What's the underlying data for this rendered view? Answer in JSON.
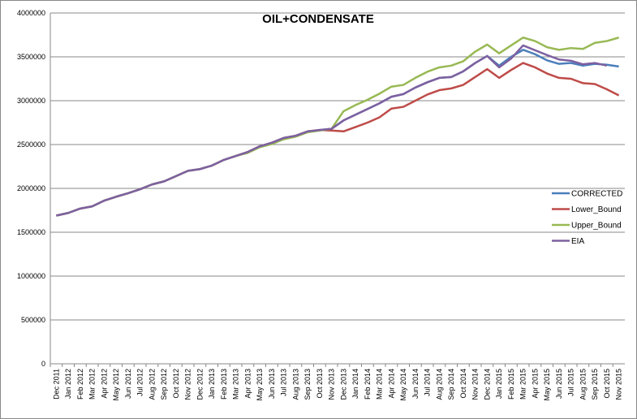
{
  "chart_data": {
    "type": "line",
    "title": "OIL+CONDENSATE",
    "categories": [
      "Dec 2011",
      "Jan 2012",
      "Feb 2012",
      "Mar 2012",
      "Apr 2012",
      "May 2012",
      "Jun 2012",
      "Jul 2012",
      "Aug 2012",
      "Sep 2012",
      "Oct 2012",
      "Nov 2012",
      "Dec 2012",
      "Jan 2013",
      "Feb 2013",
      "Mar 2013",
      "Apr 2013",
      "May 2013",
      "Jun 2013",
      "Jul 2013",
      "Aug 2013",
      "Sep 2013",
      "Oct 2013",
      "Nov 2013",
      "Dec 2013",
      "Jan 2014",
      "Feb 2014",
      "Mar 2014",
      "Apr 2014",
      "May 2014",
      "Jun 2014",
      "Jul 2014",
      "Aug 2014",
      "Sep 2014",
      "Oct 2014",
      "Nov 2014",
      "Dec 2014",
      "Jan 2015",
      "Feb 2015",
      "Mar 2015",
      "Apr 2015",
      "May 2015",
      "Jun 2015",
      "Jul 2015",
      "Aug 2015",
      "Sep 2015",
      "Oct 2015",
      "Nov 2015"
    ],
    "series": [
      {
        "name": "CORRECTED",
        "color": "#4a7ebb",
        "values": [
          1690000,
          1720000,
          1770000,
          1795000,
          1860000,
          1905000,
          1945000,
          1990000,
          2045000,
          2080000,
          2140000,
          2200000,
          2220000,
          2260000,
          2325000,
          2370000,
          2415000,
          2480000,
          2520000,
          2575000,
          2600000,
          2650000,
          2665000,
          2680000,
          2775000,
          2840000,
          2905000,
          2970000,
          3045000,
          3075000,
          3150000,
          3210000,
          3260000,
          3270000,
          3335000,
          3430000,
          3510000,
          3400000,
          3500000,
          3580000,
          3530000,
          3460000,
          3420000,
          3430000,
          3400000,
          3420000,
          3410000,
          3390000
        ]
      },
      {
        "name": "Lower_Bound",
        "color": "#be4b48",
        "values": [
          1690000,
          1720000,
          1770000,
          1795000,
          1860000,
          1905000,
          1945000,
          1990000,
          2045000,
          2080000,
          2140000,
          2200000,
          2220000,
          2260000,
          2325000,
          2370000,
          2415000,
          2480000,
          2520000,
          2575000,
          2600000,
          2650000,
          2665000,
          2660000,
          2650000,
          2700000,
          2750000,
          2810000,
          2910000,
          2930000,
          3000000,
          3070000,
          3120000,
          3140000,
          3180000,
          3270000,
          3360000,
          3260000,
          3350000,
          3430000,
          3380000,
          3310000,
          3260000,
          3250000,
          3200000,
          3190000,
          3130000,
          3060000
        ]
      },
      {
        "name": "Upper_Bound",
        "color": "#98b954",
        "values": [
          1690000,
          1720000,
          1770000,
          1795000,
          1860000,
          1905000,
          1945000,
          1990000,
          2045000,
          2080000,
          2140000,
          2200000,
          2220000,
          2260000,
          2325000,
          2370000,
          2405000,
          2470000,
          2505000,
          2560000,
          2590000,
          2640000,
          2660000,
          2680000,
          2880000,
          2950000,
          3010000,
          3080000,
          3160000,
          3180000,
          3260000,
          3330000,
          3380000,
          3400000,
          3450000,
          3560000,
          3640000,
          3540000,
          3630000,
          3720000,
          3680000,
          3610000,
          3580000,
          3600000,
          3590000,
          3660000,
          3680000,
          3720000
        ]
      },
      {
        "name": "EIA",
        "color": "#7d60a0",
        "values": [
          1690000,
          1720000,
          1770000,
          1795000,
          1860000,
          1905000,
          1945000,
          1990000,
          2045000,
          2080000,
          2140000,
          2200000,
          2220000,
          2260000,
          2325000,
          2370000,
          2415000,
          2480000,
          2520000,
          2575000,
          2600000,
          2650000,
          2665000,
          2680000,
          2775000,
          2840000,
          2905000,
          2970000,
          3045000,
          3075000,
          3150000,
          3210000,
          3260000,
          3270000,
          3335000,
          3430000,
          3510000,
          3380000,
          3480000,
          3630000,
          3575000,
          3520000,
          3470000,
          3455000,
          3415000,
          3430000,
          3400000,
          null
        ]
      }
    ],
    "ylim": [
      0,
      4000000
    ],
    "yticks": [
      0,
      500000,
      1000000,
      1500000,
      2000000,
      2500000,
      3000000,
      3500000,
      4000000
    ],
    "grid": true,
    "legend": "right"
  }
}
